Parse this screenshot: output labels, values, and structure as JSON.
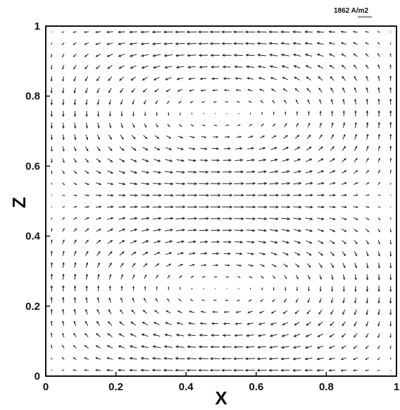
{
  "chart_data": {
    "type": "vector-field",
    "xlabel": "X",
    "ylabel": "Z",
    "xlim": [
      0,
      1
    ],
    "ylim": [
      0,
      1
    ],
    "x_ticks": [
      "0",
      "0.2",
      "0.4",
      "0.6",
      "0.8",
      "1"
    ],
    "y_ticks": [
      "0",
      "0.2",
      "0.4",
      "0.6",
      "0.8",
      "1"
    ],
    "grid": false,
    "reference_vector": {
      "label": "1862 A/m2",
      "magnitude": 1862
    },
    "field": {
      "description_units": "A/m2",
      "cells_x": 30,
      "cells_z": 30,
      "vortices": [
        {
          "center": [
            0.5,
            0.75
          ],
          "rotation": "counterclockwise"
        },
        {
          "center": [
            0.5,
            0.25
          ],
          "rotation": "clockwise"
        }
      ]
    },
    "colors": {
      "arrow": "#222222",
      "frame": "#111111"
    }
  }
}
